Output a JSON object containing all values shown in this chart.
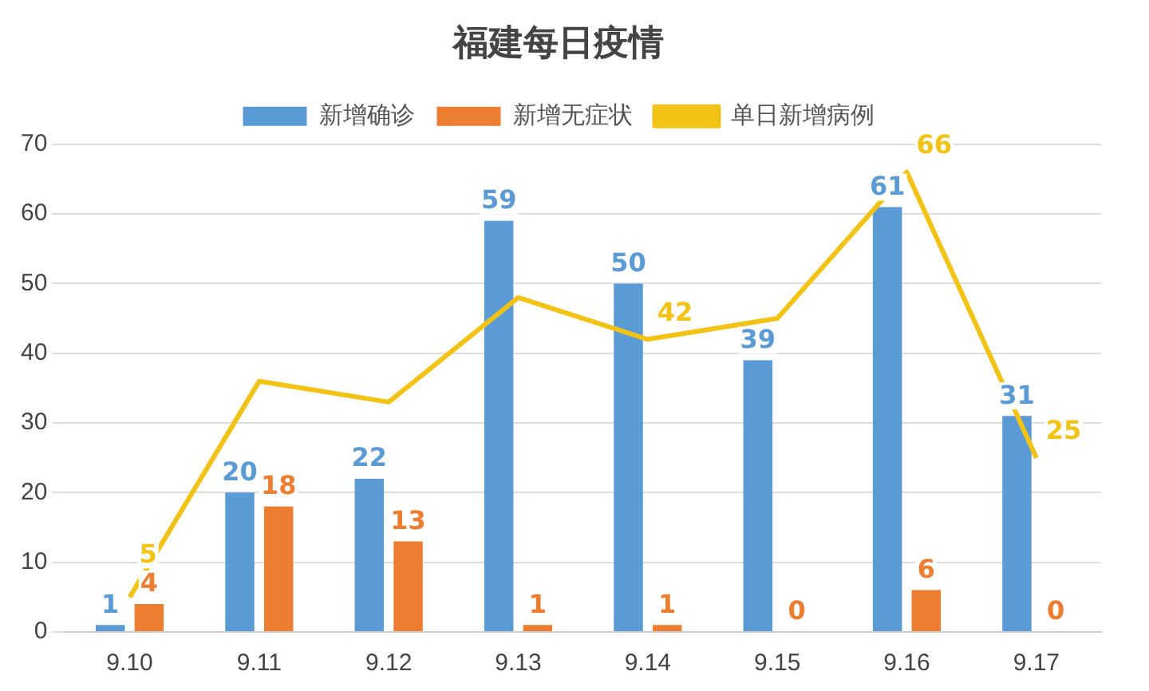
{
  "chart_data": {
    "type": "bar",
    "title": "福建每日疫情",
    "categories": [
      "9.10",
      "9.11",
      "9.12",
      "9.13",
      "9.14",
      "9.15",
      "9.16",
      "9.17"
    ],
    "series": [
      {
        "name": "新增确诊",
        "color": "#5b9bd5",
        "values": [
          1,
          20,
          22,
          59,
          50,
          39,
          61,
          31
        ],
        "value_labels": [
          "1",
          "20",
          "22",
          "59",
          "50",
          "39",
          "61",
          "31"
        ]
      },
      {
        "name": "新增无症状",
        "color": "#ed7d31",
        "values": [
          4,
          18,
          13,
          1,
          1,
          0,
          6,
          0
        ],
        "value_labels": [
          "4",
          "18",
          "13",
          "1",
          "1",
          "0",
          "6",
          "0"
        ]
      },
      {
        "name": "单日新增病例",
        "type": "line",
        "color": "#f2c314",
        "values": [
          5,
          36,
          33,
          48,
          42,
          45,
          66,
          25
        ],
        "value_labels": [
          "5",
          null,
          null,
          null,
          "42",
          null,
          "66",
          "25"
        ]
      }
    ],
    "ylim": [
      0,
      70
    ],
    "yticks": [
      0,
      10,
      20,
      30,
      40,
      50,
      60,
      70
    ],
    "grid": "y",
    "legend": "top",
    "marker": "none"
  }
}
